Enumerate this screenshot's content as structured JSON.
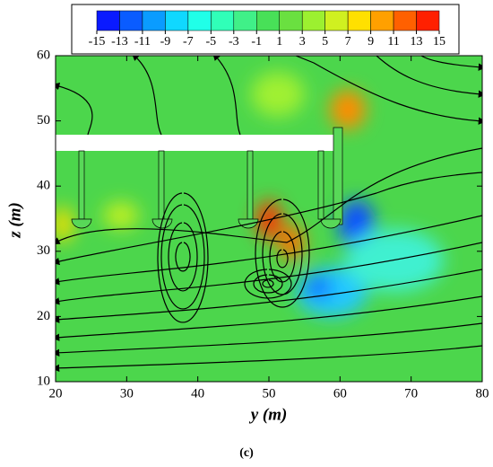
{
  "chart_data": {
    "type": "contour",
    "xlabel": "y (m)",
    "ylabel": "z (m)",
    "caption": "(c)",
    "xlim": [
      20,
      80
    ],
    "xticks": [
      20,
      30,
      40,
      50,
      60,
      70,
      80
    ],
    "ylim": [
      10,
      60
    ],
    "yticks": [
      10,
      20,
      30,
      40,
      50,
      60
    ],
    "colorbar": {
      "ticks": [
        -15,
        -13,
        -11,
        -9,
        -7,
        -5,
        -3,
        -1,
        1,
        3,
        5,
        7,
        9,
        11,
        13,
        15
      ],
      "colors": [
        "#0a1aff",
        "#0a5cff",
        "#0a9cff",
        "#10d8ff",
        "#20ffe8",
        "#30ffb8",
        "#40f088",
        "#48e058",
        "#6ae040",
        "#9cf030",
        "#d0f020",
        "#ffe000",
        "#ffa000",
        "#ff6000",
        "#ff2000"
      ]
    }
  }
}
